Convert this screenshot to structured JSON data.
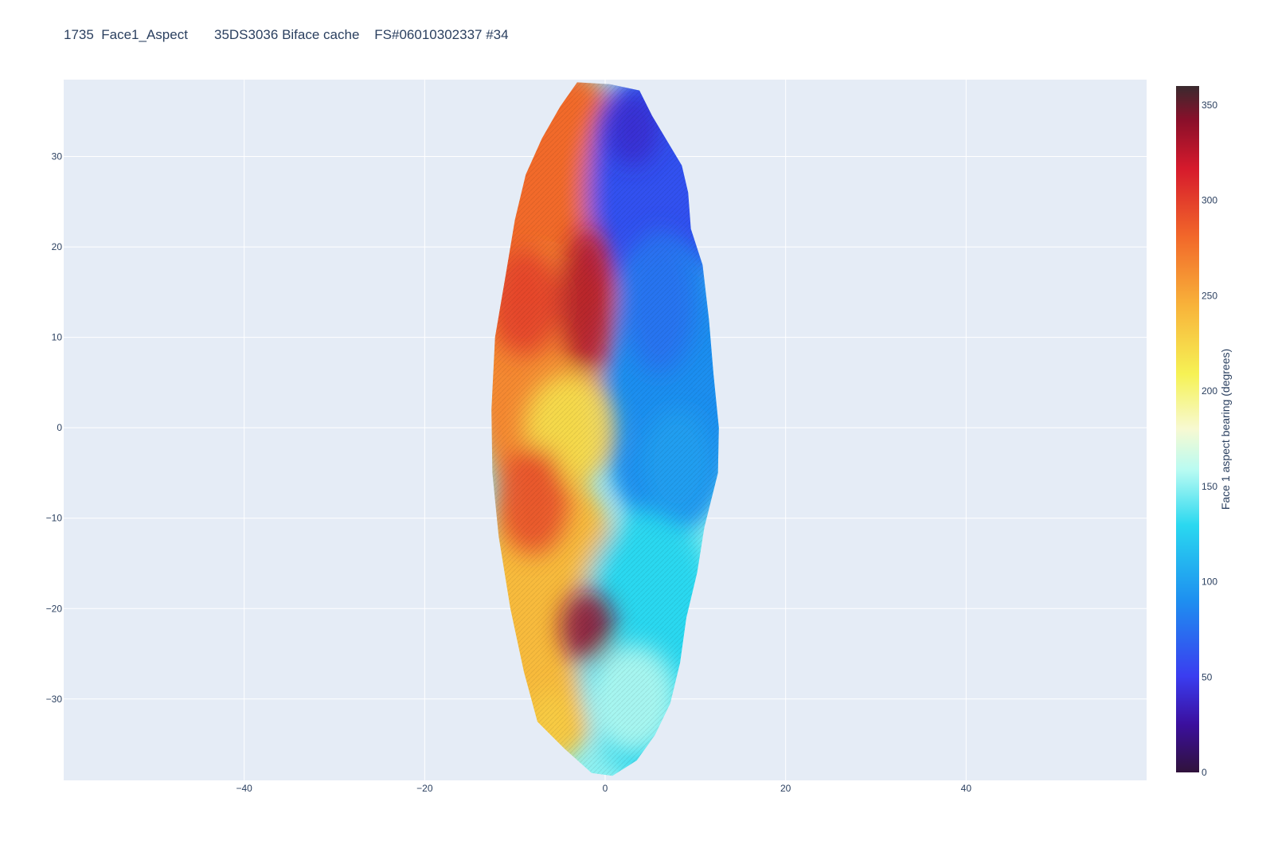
{
  "title": "1735  Face1_Aspect       35DS3036 Biface cache    FS#06010302337 #34",
  "colors": {
    "plot_bg": "#e5ecf6",
    "grid": "#ffffff",
    "paper": "#ffffff",
    "text": "#2a3f5f"
  },
  "chart_data": {
    "type": "heatmap",
    "title": "1735  Face1_Aspect       35DS3036 Biface cache    FS#06010302337 #34",
    "xlim": [
      -60,
      60
    ],
    "ylim": [
      -39,
      38.5
    ],
    "x_ticks": [
      -40,
      -20,
      0,
      20,
      40
    ],
    "x_tick_labels": [
      "−40",
      "−20",
      "0",
      "20",
      "40"
    ],
    "y_ticks": [
      -30,
      -20,
      -10,
      0,
      10,
      20,
      30
    ],
    "y_tick_labels": [
      "−30",
      "−20",
      "−10",
      "0",
      "10",
      "20",
      "30"
    ],
    "grid": true,
    "colorbar": {
      "title": "Face 1 aspect bearing (degrees)",
      "range": [
        0,
        360
      ],
      "ticks": [
        0,
        50,
        100,
        150,
        200,
        250,
        300,
        350
      ],
      "tick_labels": [
        "0",
        "50",
        "100",
        "150",
        "200",
        "250",
        "300",
        "350"
      ],
      "colorscale": [
        [
          0.0,
          "#30123b"
        ],
        [
          0.07,
          "#3b0f9e"
        ],
        [
          0.14,
          "#3a3df0"
        ],
        [
          0.25,
          "#1e8ff0"
        ],
        [
          0.36,
          "#2ad8f0"
        ],
        [
          0.44,
          "#b8fbf2"
        ],
        [
          0.5,
          "#f7f9d2"
        ],
        [
          0.58,
          "#f6f255"
        ],
        [
          0.68,
          "#f8b33a"
        ],
        [
          0.78,
          "#f2682a"
        ],
        [
          0.88,
          "#d61a2c"
        ],
        [
          0.95,
          "#8a0f2a"
        ],
        [
          1.0,
          "#3a2a2e"
        ]
      ]
    },
    "outline": [
      [
        -3.1,
        38.2
      ],
      [
        0.5,
        38.0
      ],
      [
        3.8,
        37.3
      ],
      [
        5.2,
        34.5
      ],
      [
        7.0,
        31.5
      ],
      [
        8.5,
        29.0
      ],
      [
        9.2,
        26.0
      ],
      [
        9.5,
        22.0
      ],
      [
        10.8,
        18.0
      ],
      [
        11.5,
        12.0
      ],
      [
        12.0,
        6.0
      ],
      [
        12.6,
        0.0
      ],
      [
        12.5,
        -5.0
      ],
      [
        11.0,
        -11.0
      ],
      [
        10.2,
        -16.0
      ],
      [
        9.0,
        -21.0
      ],
      [
        8.3,
        -26.0
      ],
      [
        7.2,
        -30.5
      ],
      [
        5.5,
        -34.0
      ],
      [
        3.5,
        -36.8
      ],
      [
        0.8,
        -38.5
      ],
      [
        -1.5,
        -38.2
      ],
      [
        -4.5,
        -35.5
      ],
      [
        -7.5,
        -32.5
      ],
      [
        -9.0,
        -27.0
      ],
      [
        -10.5,
        -20.0
      ],
      [
        -11.8,
        -12.0
      ],
      [
        -12.5,
        -5.0
      ],
      [
        -12.6,
        2.0
      ],
      [
        -12.2,
        10.0
      ],
      [
        -11.0,
        17.0
      ],
      [
        -10.0,
        23.0
      ],
      [
        -8.8,
        28.0
      ],
      [
        -7.0,
        32.0
      ],
      [
        -5.0,
        35.5
      ]
    ],
    "regions": [
      {
        "name": "upper-left face",
        "approx_bearing": 280
      },
      {
        "name": "mid-left face",
        "approx_bearing": 265
      },
      {
        "name": "lower-left face",
        "approx_bearing": 240
      },
      {
        "name": "upper-right face",
        "approx_bearing": 60
      },
      {
        "name": "mid-right face",
        "approx_bearing": 90
      },
      {
        "name": "lower-right face",
        "approx_bearing": 130
      }
    ]
  }
}
